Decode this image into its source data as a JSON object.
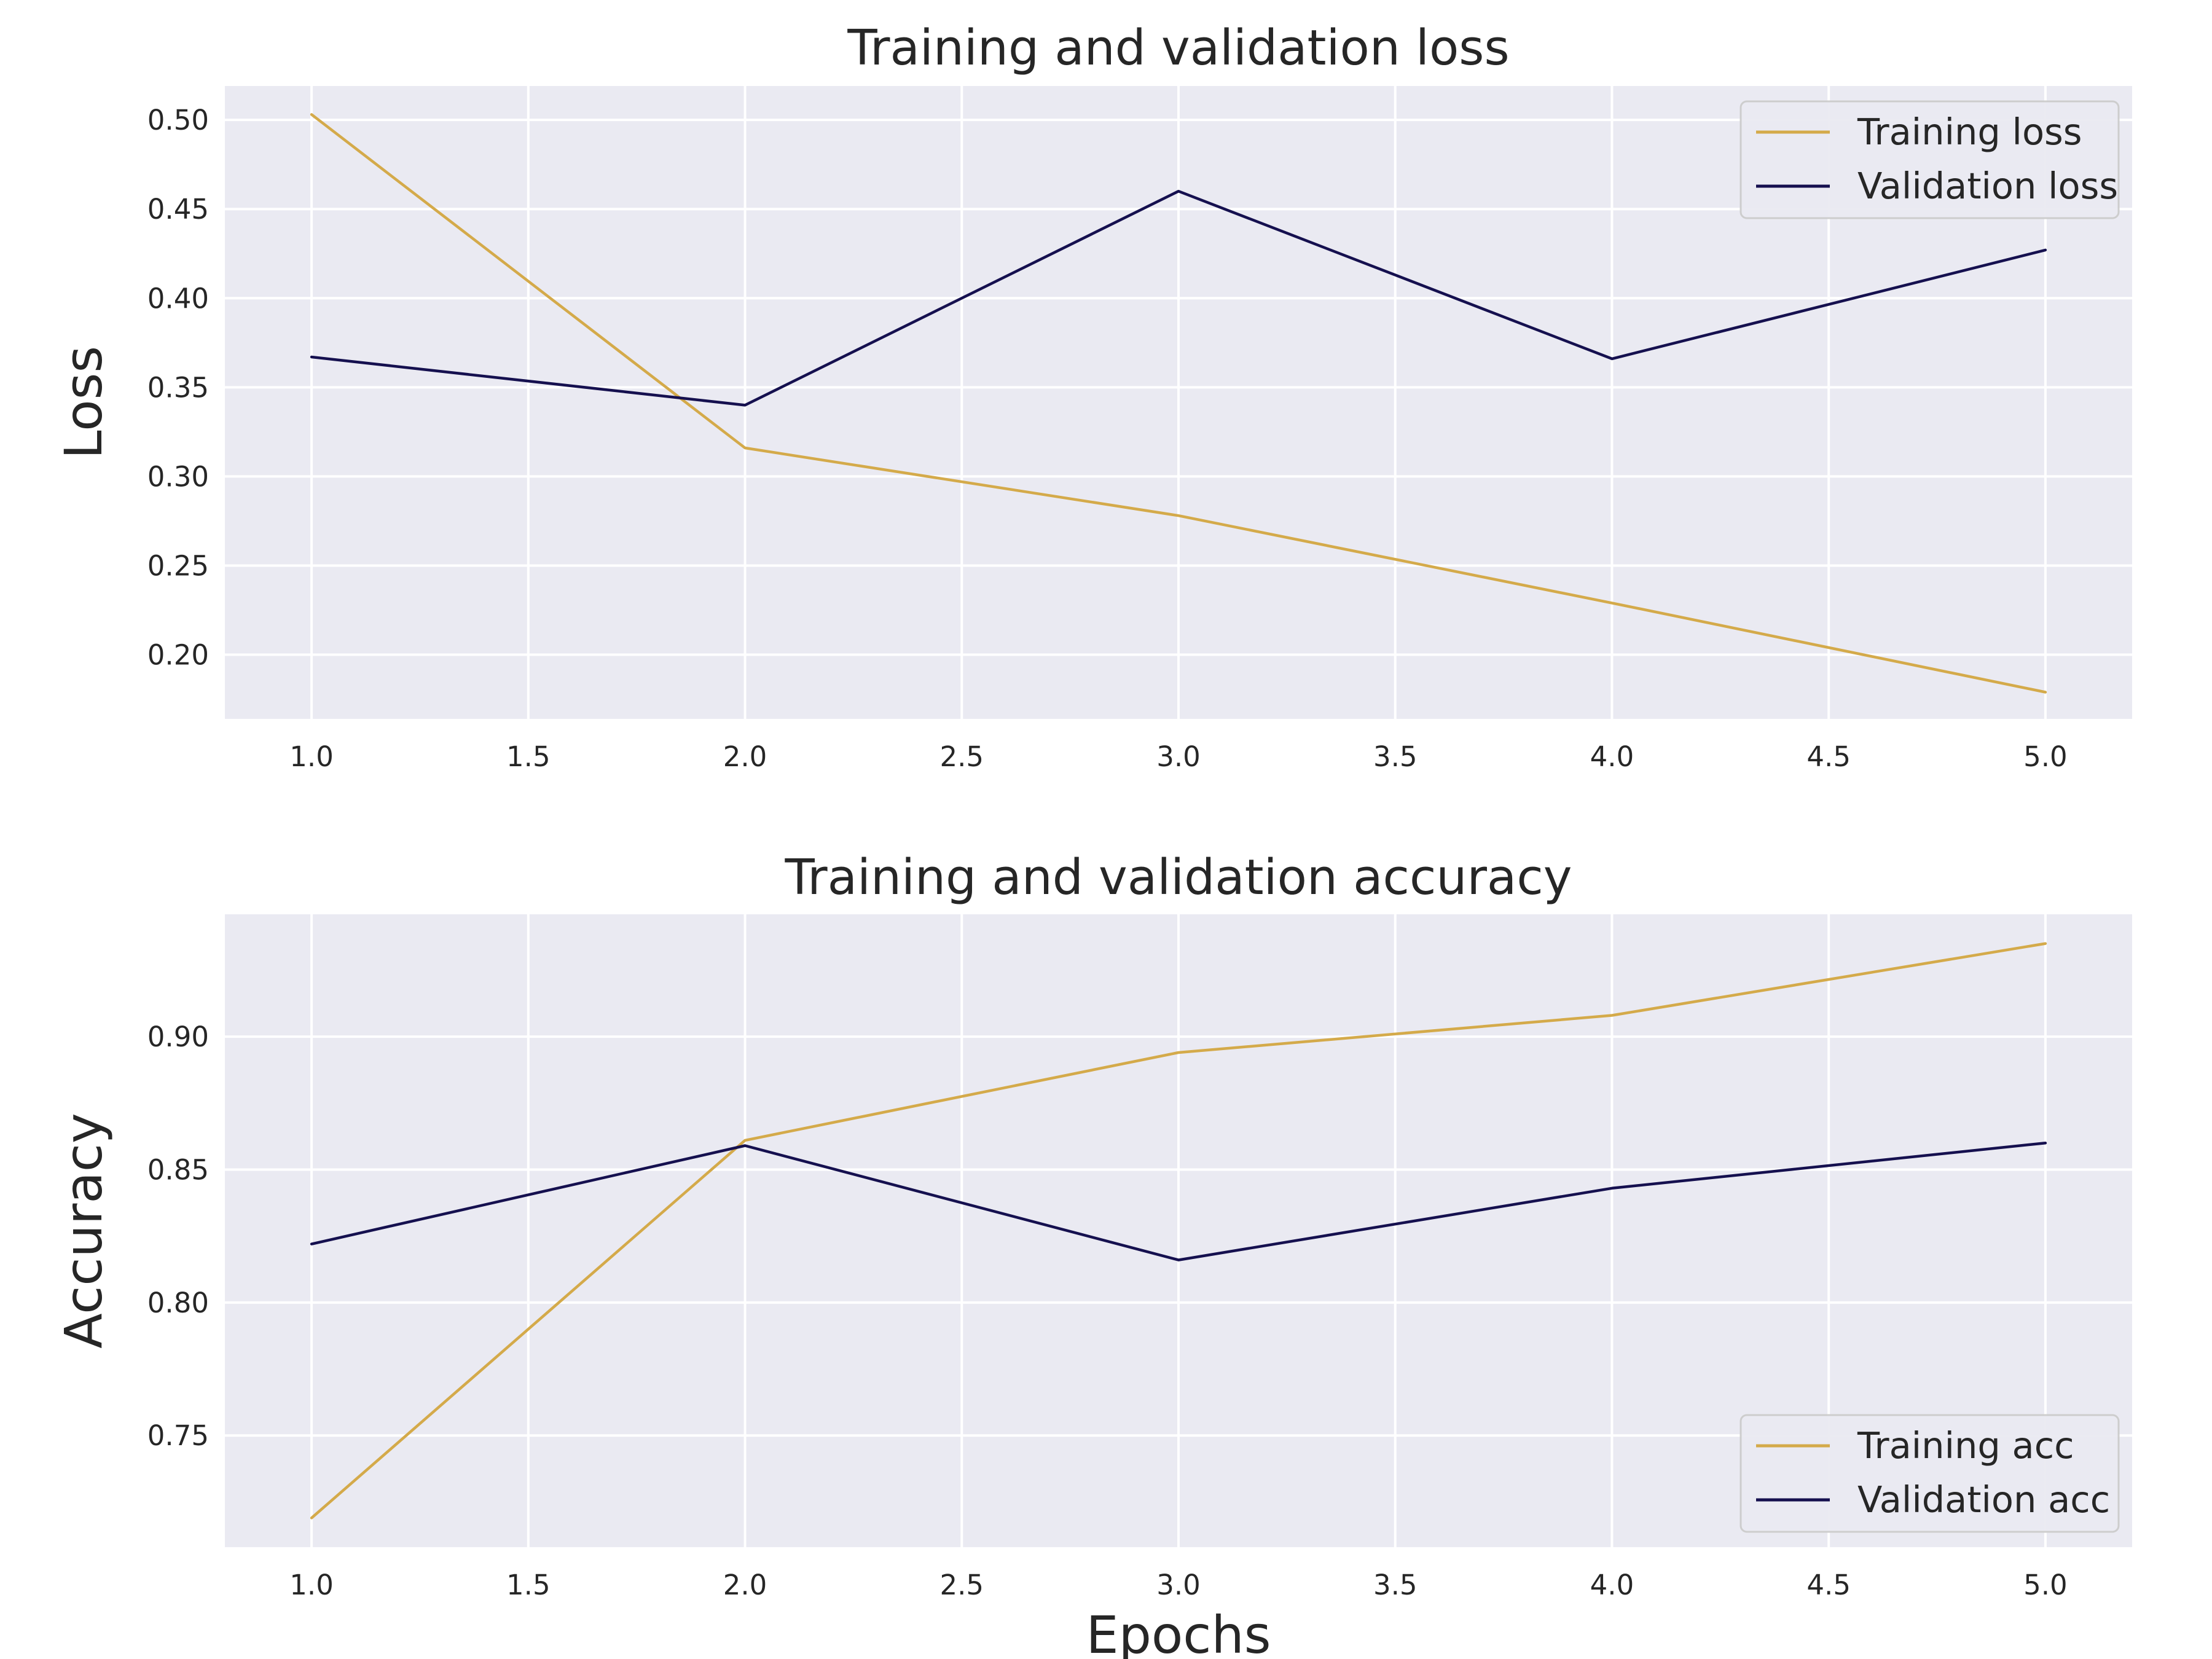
{
  "colors": {
    "training": "#d4aa4a",
    "validation": "#15104f",
    "plot_background": "#eaeaf2",
    "grid": "#ffffff"
  },
  "chart_data": [
    {
      "type": "line",
      "title": "Training and validation loss",
      "xlabel": "",
      "ylabel": "Loss",
      "x": [
        1,
        2,
        3,
        4,
        5
      ],
      "xlim": [
        0.8,
        5.2
      ],
      "ylim": [
        0.164,
        0.519
      ],
      "xticks": [
        "1.0",
        "1.5",
        "2.0",
        "2.5",
        "3.0",
        "3.5",
        "4.0",
        "4.5",
        "5.0"
      ],
      "yticks": [
        "0.20",
        "0.25",
        "0.30",
        "0.35",
        "0.40",
        "0.45",
        "0.50"
      ],
      "grid": true,
      "legend_position": "top-right",
      "series": [
        {
          "name": "Training loss",
          "color_key": "training",
          "values": [
            0.503,
            0.316,
            0.278,
            0.229,
            0.179
          ]
        },
        {
          "name": "Validation loss",
          "color_key": "validation",
          "values": [
            0.367,
            0.34,
            0.46,
            0.366,
            0.427
          ]
        }
      ]
    },
    {
      "type": "line",
      "title": "Training and validation accuracy",
      "xlabel": "Epochs",
      "ylabel": "Accuracy",
      "x": [
        1,
        2,
        3,
        4,
        5
      ],
      "xlim": [
        0.8,
        5.2
      ],
      "ylim": [
        0.708,
        0.946
      ],
      "xticks": [
        "1.0",
        "1.5",
        "2.0",
        "2.5",
        "3.0",
        "3.5",
        "4.0",
        "4.5",
        "5.0"
      ],
      "yticks": [
        "0.75",
        "0.80",
        "0.85",
        "0.90"
      ],
      "grid": true,
      "legend_position": "bottom-right",
      "series": [
        {
          "name": "Training acc",
          "color_key": "training",
          "values": [
            0.719,
            0.861,
            0.894,
            0.908,
            0.935
          ]
        },
        {
          "name": "Validation acc",
          "color_key": "validation",
          "values": [
            0.822,
            0.859,
            0.816,
            0.843,
            0.86
          ]
        }
      ]
    }
  ]
}
